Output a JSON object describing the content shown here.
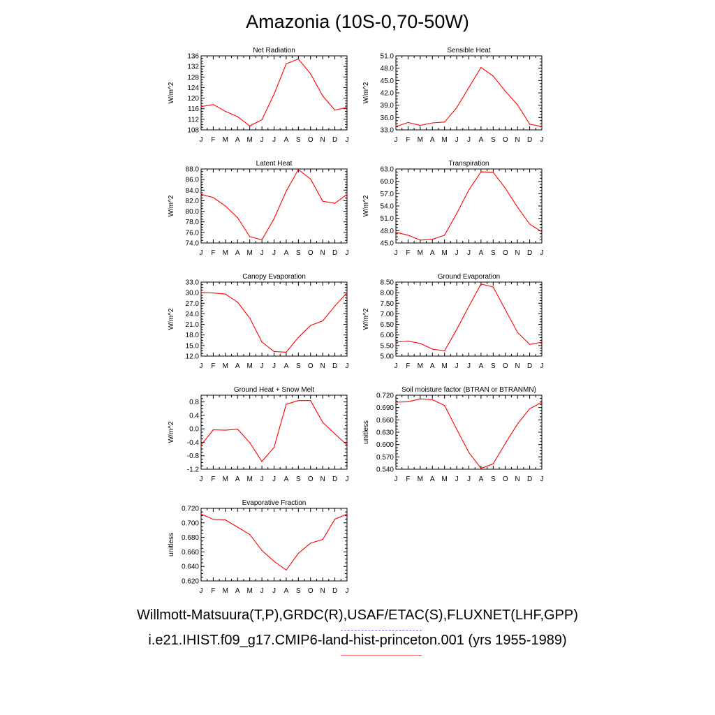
{
  "title": "Amazonia (10S-0,70-50W)",
  "legend": [
    {
      "label": "Willmott-Matsuura(T,P),GRDC(R),USAF/ETAC(S),FLUXNET(LHF,GPP)",
      "color": "#6a6af0",
      "style": "dashed"
    },
    {
      "label": "i.e21.IHIST.f09_g17.CMIP6-land-hist-princeton.001 (yrs 1955-1989)",
      "color": "#f07070",
      "style": "solid"
    }
  ],
  "line_color": "#ff0000",
  "chart_data": [
    {
      "type": "line",
      "title": "Net Radiation",
      "ylabel": "W/m^2",
      "categories": [
        "J",
        "F",
        "M",
        "A",
        "M",
        "J",
        "J",
        "A",
        "S",
        "O",
        "N",
        "D",
        "J"
      ],
      "ylim": [
        108,
        136
      ],
      "yticks": [
        "108",
        "112",
        "116",
        "120",
        "124",
        "128",
        "132",
        "136"
      ],
      "series": [
        {
          "values": [
            116.8,
            117.6,
            115.0,
            113.0,
            109.5,
            111.8,
            121.5,
            133.0,
            134.8,
            129.2,
            120.8,
            115.5,
            116.5
          ]
        }
      ]
    },
    {
      "type": "line",
      "title": "Sensible Heat",
      "ylabel": "W/m^2",
      "categories": [
        "J",
        "F",
        "M",
        "A",
        "M",
        "J",
        "J",
        "A",
        "S",
        "O",
        "N",
        "D",
        "J"
      ],
      "ylim": [
        33,
        51
      ],
      "yticks": [
        "33.0",
        "36.0",
        "39.0",
        "42.0",
        "45.0",
        "48.0",
        "51.0"
      ],
      "series": [
        {
          "values": [
            33.8,
            34.8,
            34.1,
            34.7,
            34.9,
            38.4,
            43.3,
            48.2,
            46.1,
            42.4,
            39.1,
            34.4,
            33.8
          ]
        }
      ]
    },
    {
      "type": "line",
      "title": "Latent Heat",
      "ylabel": "W/m^2",
      "categories": [
        "J",
        "F",
        "M",
        "A",
        "M",
        "J",
        "J",
        "A",
        "S",
        "O",
        "N",
        "D",
        "J"
      ],
      "ylim": [
        74,
        88
      ],
      "yticks": [
        "74.0",
        "76.0",
        "78.0",
        "80.0",
        "82.0",
        "84.0",
        "86.0",
        "88.0"
      ],
      "series": [
        {
          "values": [
            83.2,
            82.6,
            81.0,
            78.8,
            75.2,
            74.6,
            78.6,
            83.8,
            87.9,
            86.1,
            81.9,
            81.5,
            83.2
          ]
        }
      ]
    },
    {
      "type": "line",
      "title": "Transpiration",
      "ylabel": "W/m^2",
      "categories": [
        "J",
        "F",
        "M",
        "A",
        "M",
        "J",
        "J",
        "A",
        "S",
        "O",
        "N",
        "D",
        "J"
      ],
      "ylim": [
        45,
        63
      ],
      "yticks": [
        "45.0",
        "48.0",
        "51.0",
        "54.0",
        "57.0",
        "60.0",
        "63.0"
      ],
      "series": [
        {
          "values": [
            47.6,
            46.9,
            45.7,
            45.9,
            46.9,
            52.2,
            57.9,
            62.3,
            62.2,
            58.3,
            53.7,
            49.6,
            47.7
          ]
        }
      ]
    },
    {
      "type": "line",
      "title": "Canopy Evaporation",
      "ylabel": "W/m^2",
      "categories": [
        "J",
        "F",
        "M",
        "A",
        "M",
        "J",
        "J",
        "A",
        "S",
        "O",
        "N",
        "D",
        "J"
      ],
      "ylim": [
        12,
        33
      ],
      "yticks": [
        "12.0",
        "15.0",
        "18.0",
        "21.0",
        "24.0",
        "27.0",
        "30.0",
        "33.0"
      ],
      "series": [
        {
          "values": [
            30.0,
            29.9,
            29.6,
            27.3,
            22.8,
            16.0,
            13.3,
            13.1,
            17.3,
            20.7,
            22.0,
            26.2,
            30.0
          ]
        }
      ]
    },
    {
      "type": "line",
      "title": "Ground Evaporation",
      "ylabel": "W/m^2",
      "categories": [
        "J",
        "F",
        "M",
        "A",
        "M",
        "J",
        "J",
        "A",
        "S",
        "O",
        "N",
        "D",
        "J"
      ],
      "ylim": [
        5.0,
        8.5
      ],
      "yticks": [
        "5.00",
        "5.50",
        "6.00",
        "6.50",
        "7.00",
        "7.50",
        "8.00",
        "8.50"
      ],
      "series": [
        {
          "values": [
            5.66,
            5.71,
            5.6,
            5.33,
            5.25,
            6.26,
            7.35,
            8.41,
            8.27,
            7.19,
            6.12,
            5.55,
            5.66
          ]
        }
      ]
    },
    {
      "type": "line",
      "title": "Ground Heat + Snow Melt",
      "ylabel": "W/m^2",
      "categories": [
        "J",
        "F",
        "M",
        "A",
        "M",
        "J",
        "J",
        "A",
        "S",
        "O",
        "N",
        "D",
        "J"
      ],
      "ylim": [
        -1.2,
        1.0
      ],
      "yticks": [
        "-1.2",
        "-0.8",
        "-0.4",
        "0.0",
        "0.4",
        "0.8"
      ],
      "series": [
        {
          "values": [
            -0.48,
            -0.03,
            -0.04,
            -0.01,
            -0.41,
            -0.97,
            -0.55,
            0.73,
            0.84,
            0.84,
            0.19,
            -0.15,
            -0.48
          ]
        }
      ]
    },
    {
      "type": "line",
      "title": "Soil moisture factor (BTRAN or BTRANMN)",
      "ylabel": "unitless",
      "categories": [
        "J",
        "F",
        "M",
        "A",
        "M",
        "J",
        "J",
        "A",
        "S",
        "O",
        "N",
        "D",
        "J"
      ],
      "ylim": [
        0.54,
        0.72
      ],
      "yticks": [
        "0.540",
        "0.570",
        "0.600",
        "0.630",
        "0.660",
        "0.690",
        "0.720"
      ],
      "series": [
        {
          "values": [
            0.703,
            0.704,
            0.711,
            0.709,
            0.695,
            0.637,
            0.581,
            0.542,
            0.553,
            0.603,
            0.65,
            0.687,
            0.703
          ]
        }
      ]
    },
    {
      "type": "line",
      "title": "Evaporative Fraction",
      "ylabel": "unitless",
      "categories": [
        "J",
        "F",
        "M",
        "A",
        "M",
        "J",
        "J",
        "A",
        "S",
        "O",
        "N",
        "D",
        "J"
      ],
      "ylim": [
        0.62,
        0.72
      ],
      "yticks": [
        "0.620",
        "0.640",
        "0.660",
        "0.680",
        "0.700",
        "0.720"
      ],
      "series": [
        {
          "values": [
            0.712,
            0.705,
            0.704,
            0.694,
            0.684,
            0.662,
            0.647,
            0.635,
            0.658,
            0.672,
            0.677,
            0.705,
            0.712
          ]
        }
      ]
    }
  ]
}
